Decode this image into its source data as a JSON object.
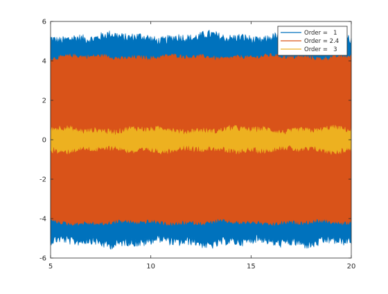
{
  "chart_data": {
    "type": "line",
    "title": "",
    "xlabel": "",
    "ylabel": "",
    "xlim": [
      5,
      20
    ],
    "ylim": [
      -6,
      6
    ],
    "xticks": [
      5,
      10,
      15,
      20
    ],
    "yticks": [
      -6,
      -4,
      -2,
      0,
      2,
      4,
      6
    ],
    "xtick_labels": [
      "5",
      "10",
      "15",
      "20"
    ],
    "ytick_labels": [
      "-6",
      "-4",
      "-2",
      "0",
      "2",
      "4",
      "6"
    ],
    "grid": false,
    "legend_position": "top-right",
    "series": [
      {
        "name": "Order =   1",
        "color": "#0072bd",
        "envelope": [
          -5.2,
          5.2
        ],
        "noise_amplitude": 0.5
      },
      {
        "name": "Order = 2.4",
        "color": "#d95319",
        "envelope": [
          -4.2,
          4.2
        ],
        "noise_amplitude": 0.25
      },
      {
        "name": "Order =   3",
        "color": "#edb120",
        "envelope": [
          -0.5,
          0.5
        ],
        "noise_amplitude": 0.35
      }
    ]
  }
}
